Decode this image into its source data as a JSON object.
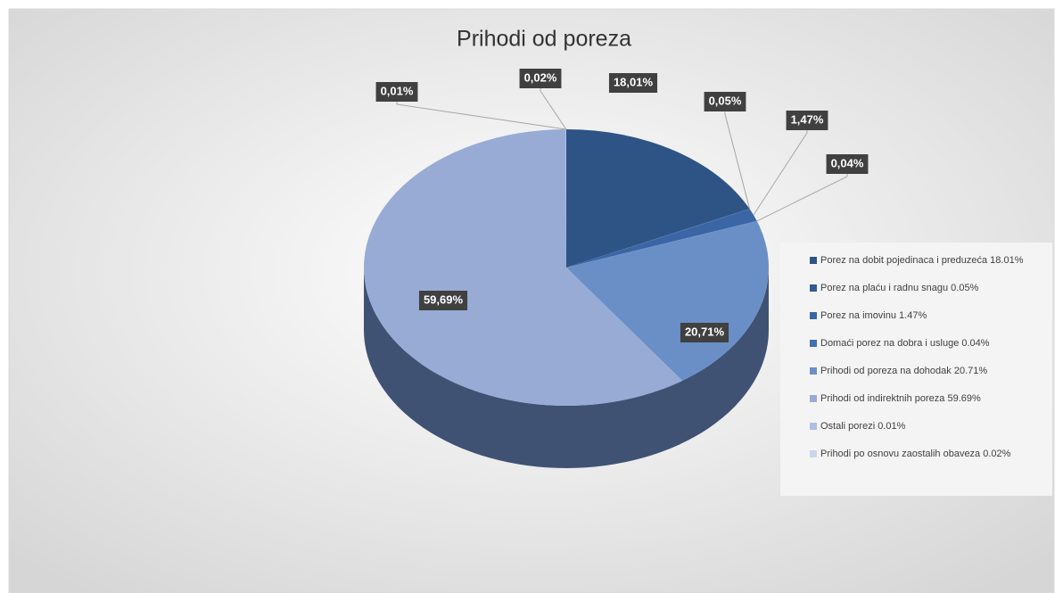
{
  "chart_data": {
    "type": "pie",
    "title": "Prihodi od poreza",
    "categories": [
      "Porez na dobit pojedinaca i preduzeća 18.01%",
      "Porez na plaću i radnu snagu 0.05%",
      "Porez na imovinu  1.47%",
      "Domaći porez na dobra i usluge 0.04%",
      "Prihodi od poreza na dohodak  20.71%",
      "Prihodi od indirektnih poreza  59.69%",
      "Ostali porezi 0.01%",
      "Prihodi po osnovu zaostalih obaveza 0.02%"
    ],
    "values": [
      18.01,
      0.05,
      1.47,
      0.04,
      20.71,
      59.69,
      0.01,
      0.02
    ],
    "value_labels": [
      "18,01%",
      "0,05%",
      "1,47%",
      "0,04%",
      "20,71%",
      "59,69%",
      "0,01%",
      "0,02%"
    ],
    "colors": [
      "#2e5486",
      "#325c93",
      "#3a66a6",
      "#4170b3",
      "#6a8fc7",
      "#97abd5",
      "#aebee0",
      "#cbd5ec"
    ],
    "legend": "right"
  }
}
